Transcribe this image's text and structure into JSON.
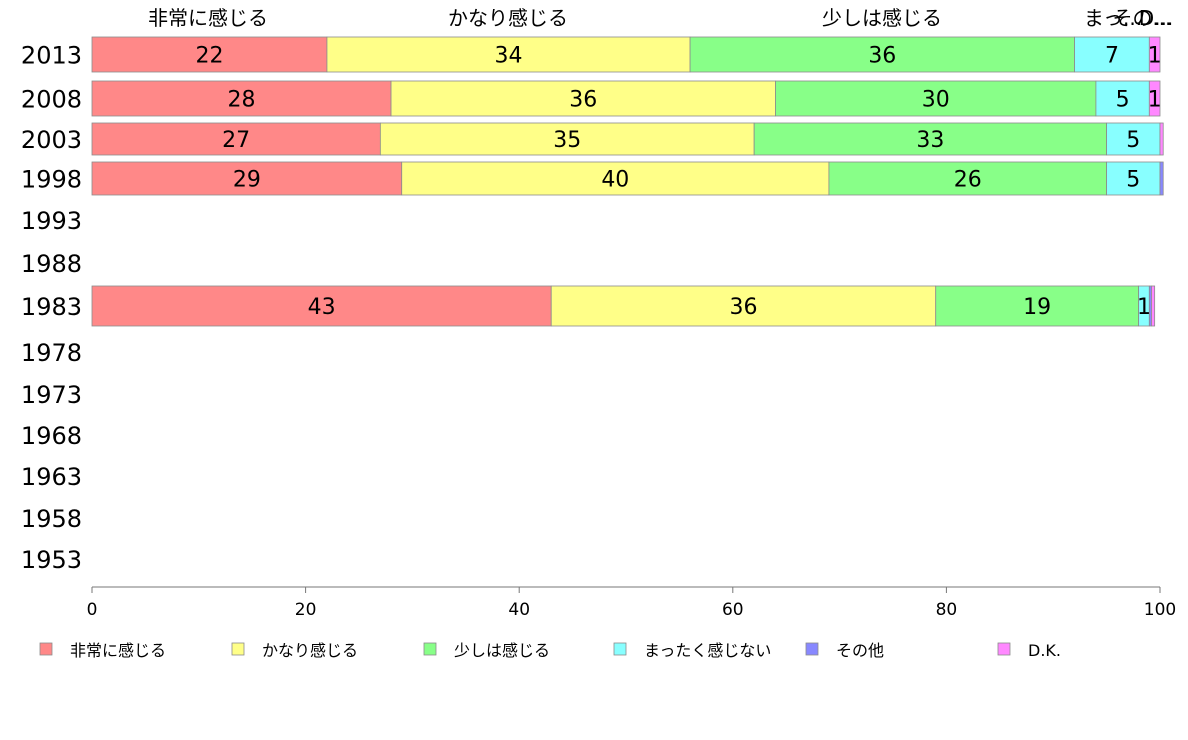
{
  "chart_data": {
    "type": "bar",
    "orientation": "horizontal",
    "stacked": true,
    "categories": [
      "2013",
      "2008",
      "2003",
      "1998",
      "1993",
      "1988",
      "1983",
      "1978",
      "1973",
      "1968",
      "1963",
      "1958",
      "1953"
    ],
    "series": [
      {
        "name": "非常に感じる",
        "color": "#ff8888",
        "values": [
          22,
          28,
          27,
          29,
          null,
          null,
          43,
          null,
          null,
          null,
          null,
          null,
          null
        ]
      },
      {
        "name": "かなり感じる",
        "color": "#ffff88",
        "values": [
          34,
          36,
          35,
          40,
          null,
          null,
          36,
          null,
          null,
          null,
          null,
          null,
          null
        ]
      },
      {
        "name": "少しは感じる",
        "color": "#88ff88",
        "values": [
          36,
          30,
          33,
          26,
          null,
          null,
          19,
          null,
          null,
          null,
          null,
          null,
          null
        ]
      },
      {
        "name": "まったく感じない",
        "color": "#88ffff",
        "values": [
          7,
          5,
          5,
          5,
          null,
          null,
          1,
          null,
          null,
          null,
          null,
          null,
          null
        ]
      },
      {
        "name": "その他",
        "color": "#8888ff",
        "values": [
          0,
          0,
          0,
          0.3,
          null,
          null,
          0.2,
          null,
          null,
          null,
          null,
          null,
          null
        ]
      },
      {
        "name": "D.K.",
        "color": "#ff88ff",
        "values": [
          1,
          1,
          0.3,
          0,
          null,
          null,
          0.3,
          null,
          null,
          null,
          null,
          null,
          null
        ]
      }
    ],
    "segment_labels": [
      [
        "22",
        "34",
        "36",
        "7",
        "",
        "1"
      ],
      [
        "28",
        "36",
        "30",
        "5",
        "",
        "1"
      ],
      [
        "27",
        "35",
        "33",
        "5",
        "",
        ""
      ],
      [
        "29",
        "40",
        "26",
        "5",
        "",
        ""
      ],
      [
        "",
        "",
        "",
        "",
        "",
        ""
      ],
      [
        "",
        "",
        "",
        "",
        "",
        ""
      ],
      [
        "43",
        "36",
        "19",
        "1",
        "",
        ""
      ],
      [
        "",
        "",
        "",
        "",
        "",
        ""
      ],
      [
        "",
        "",
        "",
        "",
        "",
        ""
      ],
      [
        "",
        "",
        "",
        "",
        "",
        ""
      ],
      [
        "",
        "",
        "",
        "",
        "",
        ""
      ],
      [
        "",
        "",
        "",
        "",
        "",
        ""
      ],
      [
        "",
        "",
        "",
        "",
        "",
        ""
      ]
    ],
    "top_labels": [
      "非常に感じる",
      "かなり感じる",
      "少しは感じる",
      "まっ...",
      "その...",
      "D..."
    ],
    "xlim": [
      0,
      100
    ],
    "xticks": [
      "0",
      "20",
      "40",
      "60",
      "80",
      "100"
    ],
    "legend_position": "bottom",
    "grid": false
  }
}
